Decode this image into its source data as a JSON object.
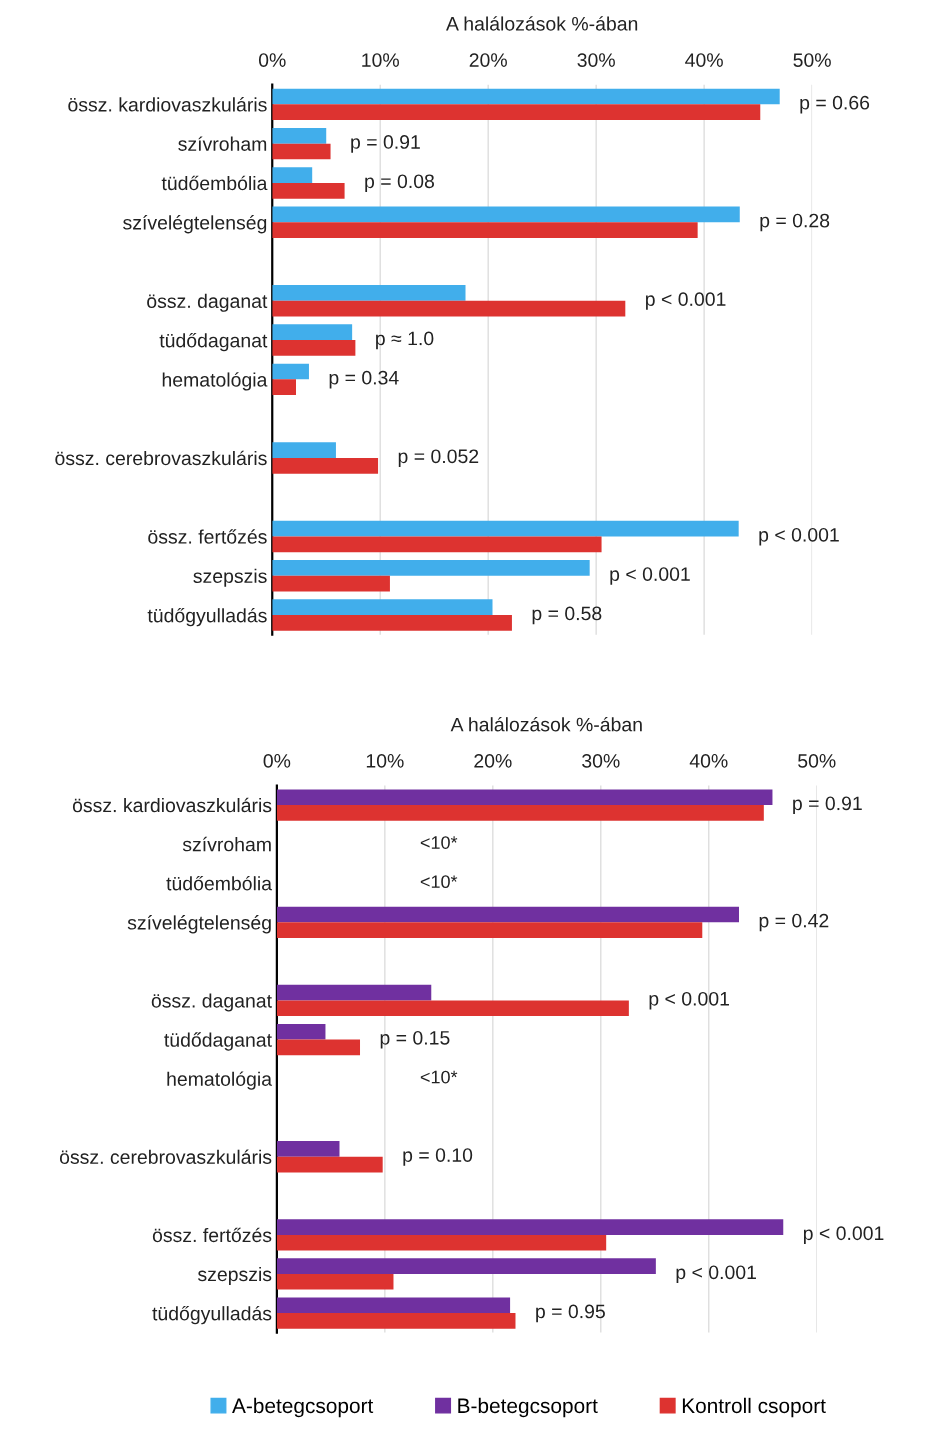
{
  "chart_data": [
    {
      "type": "bar",
      "orientation": "horizontal",
      "xlabel": "A halálozások %-ában",
      "categories": [
        "össz. kardiovaszkuláris",
        "szívroham",
        "tüdőembólia",
        "szívelégtelenség",
        null,
        "össz. daganat",
        "tüdődaganat",
        "hematológia",
        null,
        "össz. cerebrovaszkuláris",
        null,
        "össz. fertőzés",
        "szepszis",
        "tüdőgyulladás"
      ],
      "series": [
        {
          "name": "A-betegcsoport",
          "color": "#41aeeb",
          "values": [
            47.0,
            5.0,
            3.7,
            43.3,
            null,
            17.9,
            7.4,
            3.4,
            null,
            5.9,
            null,
            43.2,
            29.4,
            20.4
          ]
        },
        {
          "name": "Kontroll csoport",
          "color": "#dd3330",
          "values": [
            45.2,
            5.4,
            6.7,
            39.4,
            null,
            32.7,
            7.7,
            2.2,
            null,
            9.8,
            null,
            30.5,
            10.9,
            22.2
          ]
        }
      ],
      "xlim": [
        0,
        50
      ],
      "xticks": [
        {
          "value": 0,
          "label": "0%"
        },
        {
          "value": 10,
          "label": "10%"
        },
        {
          "value": 20,
          "label": "20%"
        },
        {
          "value": 30,
          "label": "30%"
        },
        {
          "value": 40,
          "label": "40%"
        },
        {
          "value": 50,
          "label": "50%"
        }
      ],
      "grid": "x",
      "legend": "bottom",
      "annotations": [
        "p = 0.66",
        "p = 0.91",
        "p = 0.08",
        "p = 0.28",
        "p < 0.001",
        "p ≈ 1.0",
        "p = 0.34",
        "p = 0.052",
        "p < 0.001",
        "p < 0.001",
        "p = 0.58"
      ]
    },
    {
      "type": "bar",
      "orientation": "horizontal",
      "xlabel": "A halálozások %-ában",
      "categories": [
        "össz. kardiovaszkuláris",
        "szívroham",
        "tüdőembólia",
        "szívelégtelenség",
        null,
        "össz. daganat",
        "tüdődaganat",
        "hematológia",
        null,
        "össz. cerebrovaszkuláris",
        null,
        "össz. fertőzés",
        "szepszis",
        "tüdőgyulladás"
      ],
      "series": [
        {
          "name": "B-betegcsoport",
          "color": "#7030a0",
          "values": [
            45.9,
            null,
            null,
            42.8,
            null,
            14.3,
            4.5,
            null,
            null,
            5.8,
            null,
            46.9,
            35.1,
            21.6
          ]
        },
        {
          "name": "Kontroll csoport",
          "color": "#dd3330",
          "values": [
            45.1,
            null,
            null,
            39.4,
            null,
            32.6,
            7.7,
            null,
            null,
            9.8,
            null,
            30.5,
            10.8,
            22.1
          ]
        }
      ],
      "xlim": [
        0,
        50
      ],
      "xticks": [
        {
          "value": 0,
          "label": "0%"
        },
        {
          "value": 10,
          "label": "10%"
        },
        {
          "value": 20,
          "label": "20%"
        },
        {
          "value": 30,
          "label": "30%"
        },
        {
          "value": 40,
          "label": "40%"
        },
        {
          "value": 50,
          "label": "50%"
        }
      ],
      "grid": "x",
      "legend": "bottom",
      "annotations": [
        "p = 0.91",
        "<10*",
        "<10*",
        "p = 0.42",
        "p < 0.001",
        "p = 0.15",
        "<10*",
        "p = 0.10",
        "p < 0.001",
        "p < 0.001",
        "p = 0.95"
      ]
    }
  ]
}
